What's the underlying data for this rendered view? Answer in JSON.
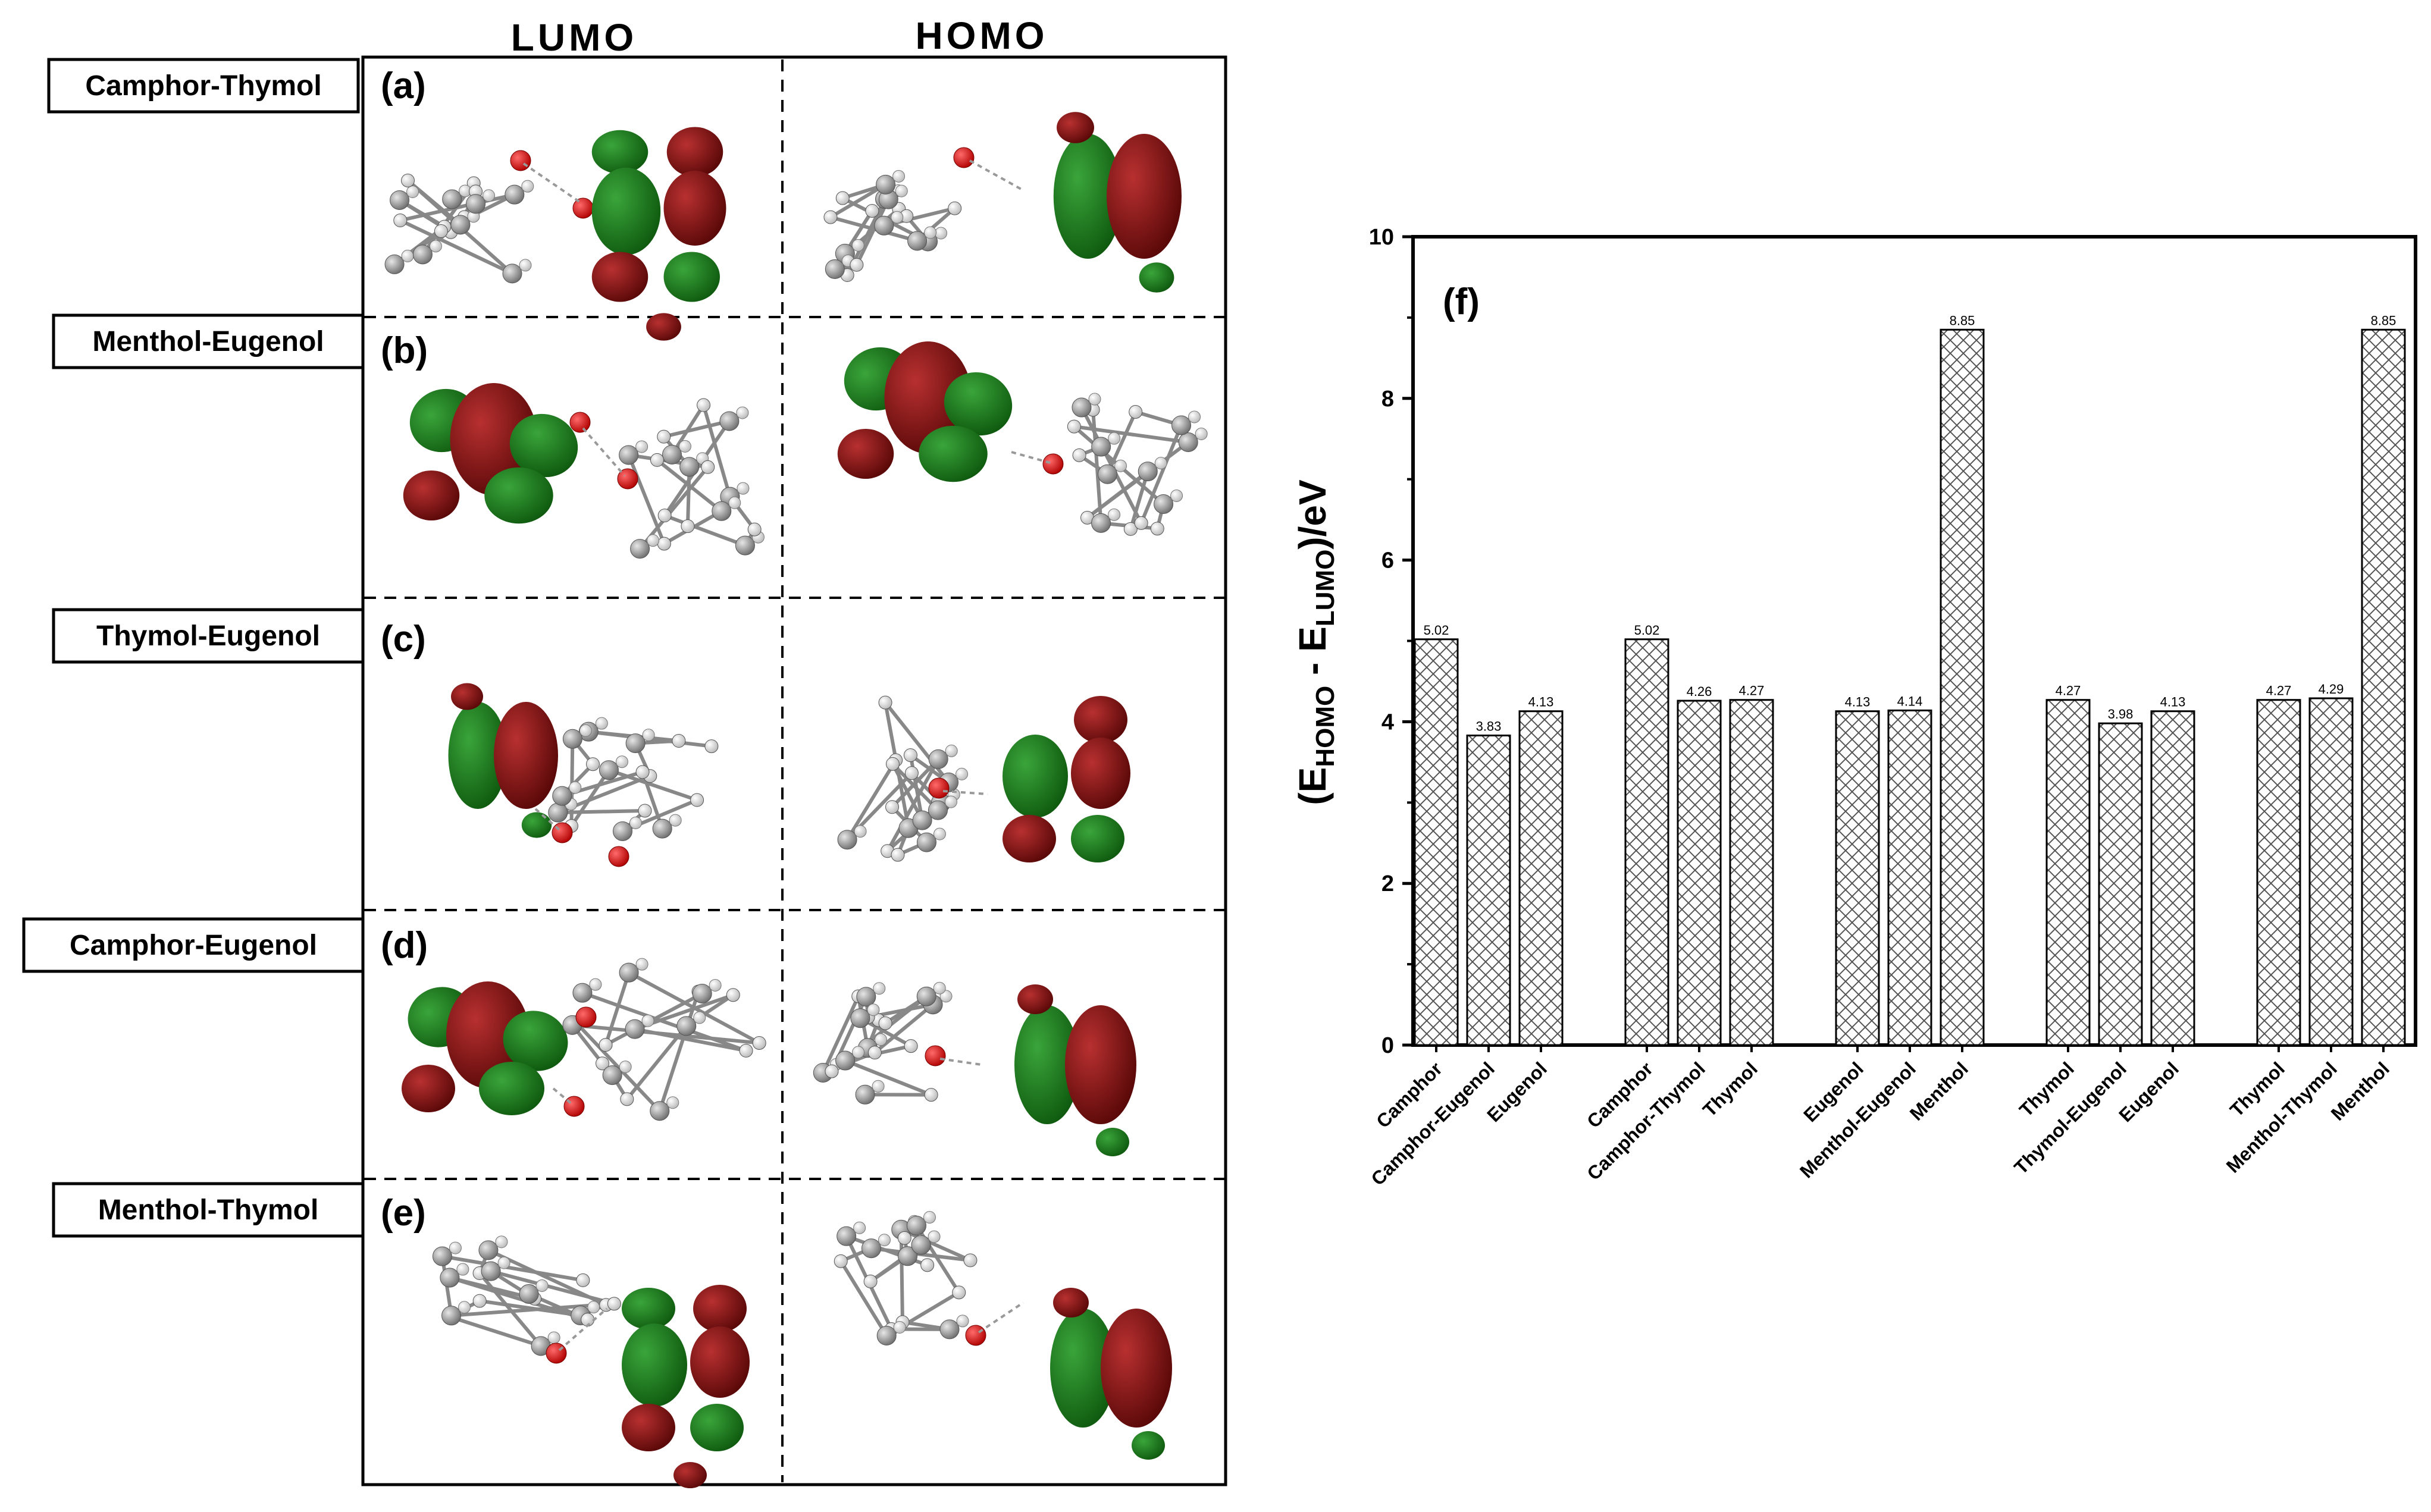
{
  "figure": {
    "column_headers": [
      "LUMO",
      "HOMO"
    ],
    "panels": [
      {
        "letter": "(a)",
        "system": "Camphor-Thymol"
      },
      {
        "letter": "(b)",
        "system": "Menthol-Eugenol"
      },
      {
        "letter": "(c)",
        "system": "Thymol-Eugenol"
      },
      {
        "letter": "(d)",
        "system": "Camphor-Eugenol"
      },
      {
        "letter": "(e)",
        "system": "Menthol-Thymol"
      }
    ],
    "colors": {
      "lobe_red": "#7a1212",
      "lobe_green": "#1e7a1a",
      "atom_grey": "#9a9a9a",
      "atom_oxygen": "#d81010",
      "atom_h": "#eaeaea"
    }
  },
  "chart_data": {
    "type": "bar",
    "panel_letter": "(f)",
    "ylabel": {
      "open": "(E",
      "sub1": "HOMO",
      "mid": " - E",
      "sub2": "LUMO",
      "close": ")/eV"
    },
    "ylim": [
      0,
      10
    ],
    "yticks": [
      "0",
      "2",
      "4",
      "6",
      "8",
      "10"
    ],
    "groups": [
      {
        "categories": [
          "Camphor",
          "Camphor-Eugenol",
          "Eugenol"
        ],
        "values": [
          5.02,
          3.83,
          4.13
        ],
        "labels": [
          "5.02",
          "3.83",
          "4.13"
        ]
      },
      {
        "categories": [
          "Camphor",
          "Camphor-Thymol",
          "Thymol"
        ],
        "values": [
          5.02,
          4.26,
          4.27
        ],
        "labels": [
          "5.02",
          "4.26",
          "4.27"
        ]
      },
      {
        "categories": [
          "Eugenol",
          "Menthol-Eugenol",
          "Menthol"
        ],
        "values": [
          4.13,
          4.14,
          8.85
        ],
        "labels": [
          "4.13",
          "4.14",
          "8.85"
        ]
      },
      {
        "categories": [
          "Thymol",
          "Thymol-Eugenol",
          "Eugenol"
        ],
        "values": [
          4.27,
          3.98,
          4.13
        ],
        "labels": [
          "4.27",
          "3.98",
          "4.13"
        ]
      },
      {
        "categories": [
          "Thymol",
          "Menthol-Thymol",
          "Menthol"
        ],
        "values": [
          4.27,
          4.29,
          8.85
        ],
        "labels": [
          "4.27",
          "4.29",
          "8.85"
        ]
      }
    ],
    "bar_fill": "crosshatch"
  }
}
